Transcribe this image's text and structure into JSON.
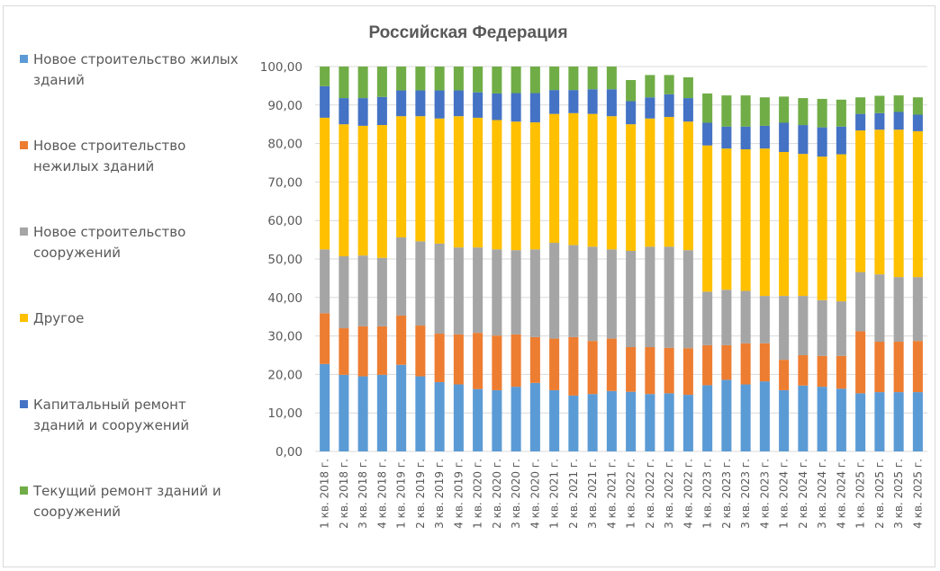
{
  "chart_data": {
    "type": "bar",
    "stacked": true,
    "title": "Российская Федерация",
    "xlabel": "",
    "ylabel": "",
    "ylim": [
      0,
      100
    ],
    "yticks": [
      "0,00",
      "10,00",
      "20,00",
      "30,00",
      "40,00",
      "50,00",
      "60,00",
      "70,00",
      "80,00",
      "90,00",
      "100,00"
    ],
    "grid": true,
    "legend_position": "left",
    "categories": [
      "1 кв. 2018 г.",
      "2 кв. 2018 г.",
      "3 кв. 2018 г.",
      "4 кв. 2018 г.",
      "1 кв. 2019 г.",
      "2 кв. 2019 г.",
      "3 кв. 2019 г.",
      "4 кв. 2019 г.",
      "1 кв. 2020 г.",
      "2 кв. 2020 г.",
      "3 кв. 2020 г.",
      "4 кв. 2020 г.",
      "1 кв. 2021 г.",
      "2 кв. 2021 г.",
      "3 кв. 2021 г.",
      "4 кв. 2021 г.",
      "1 кв. 2022 г.",
      "2 кв. 2022 г.",
      "3 кв. 2022 г.",
      "4 кв. 2022 г.",
      "1 кв. 2023 г.",
      "2 кв. 2023 г.",
      "3 кв. 2023 г.",
      "4 кв. 2023 г.",
      "1 кв. 2024 г.",
      "2 кв. 2024 г.",
      "3 кв. 2024 г.",
      "4 кв. 2024 г.",
      "1 кв. 2025 г.",
      "2 кв. 2025 г.",
      "3 кв. 2025 г.",
      "4 кв. 2025 г."
    ],
    "series": [
      {
        "name": "Новое строительство жилых зданий",
        "color": "#5b9bd5",
        "values": [
          22.7,
          19.9,
          19.5,
          19.9,
          22.5,
          19.5,
          18.0,
          17.4,
          16.2,
          15.9,
          16.8,
          17.8,
          15.9,
          14.5,
          14.9,
          15.7,
          15.5,
          14.9,
          15.1,
          14.7,
          17.2,
          18.6,
          17.4,
          18.2,
          15.9,
          17.1,
          16.8,
          16.3,
          15.1,
          15.4,
          15.4,
          15.4
        ]
      },
      {
        "name": "Новое строительство нежилых зданий",
        "color": "#ed7d31",
        "values": [
          13.2,
          12.1,
          13.0,
          12.6,
          12.8,
          13.2,
          12.6,
          13.0,
          14.6,
          14.2,
          13.6,
          11.9,
          13.4,
          15.2,
          13.8,
          13.6,
          11.6,
          12.2,
          11.8,
          12.1,
          10.4,
          9.0,
          10.7,
          9.9,
          7.9,
          7.9,
          8.0,
          8.5,
          16.1,
          13.1,
          13.1,
          13.3
        ]
      },
      {
        "name": "Новое строительство сооружений",
        "color": "#a5a5a5",
        "values": [
          16.6,
          18.7,
          18.4,
          17.8,
          20.3,
          21.9,
          23.4,
          22.6,
          22.2,
          22.4,
          21.9,
          22.8,
          24.9,
          23.9,
          24.5,
          23.2,
          25.0,
          26.1,
          26.3,
          25.5,
          13.9,
          14.4,
          13.6,
          12.3,
          16.6,
          15.4,
          14.5,
          14.2,
          15.4,
          17.5,
          16.8,
          16.6
        ]
      },
      {
        "name": "Другое",
        "color": "#ffc000",
        "values": [
          34.2,
          34.3,
          33.7,
          34.5,
          31.5,
          32.5,
          32.5,
          34.1,
          33.7,
          33.6,
          33.4,
          33.0,
          33.5,
          34.3,
          34.5,
          34.6,
          32.9,
          33.3,
          33.7,
          33.4,
          38.0,
          36.7,
          36.8,
          38.3,
          37.4,
          36.9,
          37.3,
          38.2,
          36.8,
          37.6,
          38.3,
          37.9
        ]
      },
      {
        "name": "Капитальный ремонт зданий и сооружений",
        "color": "#4472c4",
        "values": [
          8.2,
          6.8,
          7.2,
          7.3,
          6.7,
          6.7,
          7.3,
          6.7,
          6.6,
          6.9,
          7.4,
          7.6,
          6.2,
          6.0,
          6.4,
          7.0,
          6.0,
          5.5,
          5.9,
          6.1,
          5.9,
          5.7,
          5.9,
          5.9,
          7.6,
          7.5,
          7.6,
          7.2,
          4.3,
          4.3,
          4.6,
          4.3
        ]
      },
      {
        "name": "Текущий ремонт зданий и сооружений",
        "color": "#70ad47",
        "values": [
          5.1,
          8.2,
          8.2,
          7.9,
          6.2,
          6.2,
          6.2,
          6.2,
          6.7,
          7.0,
          6.9,
          6.9,
          6.1,
          6.1,
          5.9,
          5.9,
          5.5,
          5.8,
          5.0,
          5.4,
          7.6,
          8.1,
          8.1,
          7.4,
          6.8,
          7.0,
          7.4,
          7.0,
          4.3,
          4.5,
          4.3,
          4.5
        ]
      }
    ]
  },
  "legend": {
    "items": [
      {
        "line1": "Новое строительство жилых",
        "line2": "зданий",
        "color": "#5b9bd5"
      },
      {
        "line1": "Новое строительство",
        "line2": "нежилых зданий",
        "color": "#ed7d31"
      },
      {
        "line1": "Новое строительство",
        "line2": "сооружений",
        "color": "#a5a5a5"
      },
      {
        "line1": "Другое",
        "line2": "",
        "color": "#ffc000"
      },
      {
        "line1": "Капитальный ремонт",
        "line2": "зданий и сооружений",
        "color": "#4472c4"
      },
      {
        "line1": "Текущий ремонт зданий и",
        "line2": "сооружений",
        "color": "#70ad47"
      }
    ]
  },
  "colors": {
    "gridline": "#d9d9d9",
    "text": "#595959",
    "border": "#d9d9d9"
  }
}
